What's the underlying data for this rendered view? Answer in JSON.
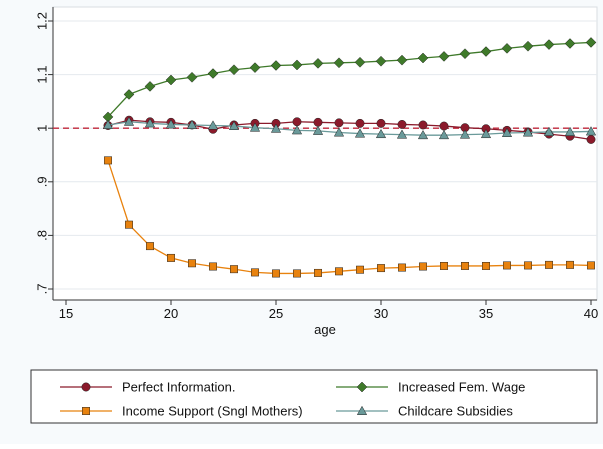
{
  "chart_data": {
    "type": "line",
    "title": "",
    "xlabel": "age",
    "ylabel": "",
    "xlim": [
      15,
      40
    ],
    "ylim": [
      0.7,
      1.2
    ],
    "x_ticks": [
      15,
      20,
      25,
      30,
      35,
      40
    ],
    "y_ticks": [
      0.7,
      0.8,
      0.9,
      1,
      1.1,
      1.2
    ],
    "y_tick_labels": [
      ".7",
      ".8",
      ".9",
      "1",
      "1.1",
      "1.2"
    ],
    "grid": "horizontal",
    "reference_line": {
      "y": 1,
      "color": "#c0263a",
      "style": "dashed"
    },
    "legend_position": "bottom",
    "x": [
      17,
      18,
      19,
      20,
      21,
      22,
      23,
      24,
      25,
      26,
      27,
      28,
      29,
      30,
      31,
      32,
      33,
      34,
      35,
      36,
      37,
      38,
      39,
      40
    ],
    "series": [
      {
        "name": "Perfect Information.",
        "color": "#8b1a2b",
        "marker": "circle",
        "values": [
          1.005,
          1.015,
          1.012,
          1.011,
          1.006,
          0.998,
          1.006,
          1.009,
          1.009,
          1.012,
          1.011,
          1.01,
          1.009,
          1.009,
          1.007,
          1.006,
          1.004,
          1.001,
          0.999,
          0.996,
          0.993,
          0.989,
          0.985,
          0.979
        ]
      },
      {
        "name": "Increased Fem. Wage",
        "color": "#3f7a2a",
        "marker": "diamond",
        "values": [
          1.021,
          1.063,
          1.078,
          1.09,
          1.095,
          1.102,
          1.109,
          1.113,
          1.117,
          1.118,
          1.121,
          1.122,
          1.123,
          1.125,
          1.127,
          1.131,
          1.134,
          1.139,
          1.143,
          1.149,
          1.153,
          1.156,
          1.158,
          1.16
        ]
      },
      {
        "name": "Income Support (Sngl Mothers)",
        "color": "#e8820e",
        "marker": "square",
        "values": [
          0.94,
          0.82,
          0.78,
          0.758,
          0.748,
          0.742,
          0.737,
          0.731,
          0.729,
          0.729,
          0.73,
          0.733,
          0.736,
          0.739,
          0.74,
          0.742,
          0.743,
          0.743,
          0.743,
          0.744,
          0.744,
          0.745,
          0.745,
          0.744
        ]
      },
      {
        "name": "Childcare Subsidies",
        "color": "#6a9a9a",
        "marker": "triangle",
        "values": [
          1.006,
          1.012,
          1.009,
          1.007,
          1.006,
          1.005,
          1.004,
          1.001,
          0.999,
          0.996,
          0.995,
          0.992,
          0.99,
          0.989,
          0.988,
          0.987,
          0.987,
          0.988,
          0.989,
          0.991,
          0.992,
          0.993,
          0.993,
          0.994
        ]
      }
    ]
  }
}
